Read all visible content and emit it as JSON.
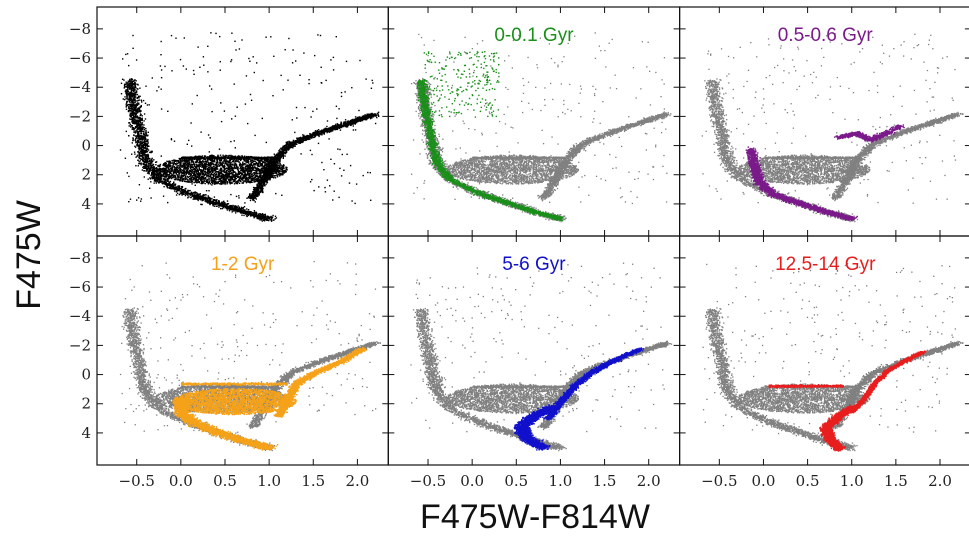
{
  "figure": {
    "xlabel": "F475W-F814W",
    "ylabel": "F475W",
    "background_color": "#808080"
  },
  "chart_data": {
    "type": "scatter",
    "xlabel": "F475W-F814W",
    "ylabel": "F475W",
    "xlim": [
      -0.95,
      2.35
    ],
    "ylim": [
      6.2,
      -9.5
    ],
    "y_inverted": true,
    "xticks": [
      -0.5,
      0.0,
      0.5,
      1.0,
      1.5,
      2.0
    ],
    "xtick_labels": [
      "−0.5",
      "0.0",
      "0.5",
      "1.0",
      "1.5",
      "2.0"
    ],
    "yticks": [
      -8,
      -6,
      -4,
      -2,
      0,
      2,
      4
    ],
    "ytick_labels": [
      "−8",
      "−6",
      "−4",
      "−2",
      "0",
      "2",
      "4"
    ],
    "grid": false,
    "panels": [
      {
        "label": "",
        "color": "#000000",
        "components": [
          {
            "kind": "ms",
            "points": [
              [
                1.0,
                5.0
              ],
              [
                0.7,
                4.5
              ],
              [
                0.4,
                3.9
              ],
              [
                0.1,
                3.3
              ],
              [
                -0.25,
                2.3
              ],
              [
                -0.4,
                1.2
              ],
              [
                -0.45,
                0.0
              ],
              [
                -0.5,
                -1.5
              ],
              [
                -0.55,
                -3.0
              ],
              [
                -0.58,
                -4.5
              ]
            ],
            "width": 0.55
          },
          {
            "kind": "blob",
            "cx": 0.45,
            "cy": 1.6,
            "rx": 0.75,
            "ry": 1.0
          },
          {
            "kind": "rgb",
            "points": [
              [
                0.8,
                3.6
              ],
              [
                0.95,
                2.2
              ],
              [
                1.05,
                1.0
              ],
              [
                1.25,
                -0.2
              ],
              [
                1.6,
                -1.0
              ],
              [
                1.9,
                -1.6
              ],
              [
                2.2,
                -2.2
              ]
            ],
            "width": 0.4
          },
          {
            "kind": "hb",
            "x0": 0.0,
            "x1": 1.05,
            "y": 0.8,
            "width": 0.1
          },
          {
            "kind": "halo",
            "x": [
              -0.7,
              2.2
            ],
            "y": [
              -7.8,
              4.0
            ]
          }
        ]
      },
      {
        "label": "0-0.1 Gyr",
        "color": "#1a8f1a",
        "components": [
          {
            "kind": "ms",
            "points": [
              [
                1.0,
                5.0
              ],
              [
                0.7,
                4.5
              ],
              [
                0.4,
                3.9
              ],
              [
                0.1,
                3.3
              ],
              [
                -0.25,
                2.3
              ],
              [
                -0.4,
                1.2
              ],
              [
                -0.45,
                0.0
              ],
              [
                -0.5,
                -1.5
              ],
              [
                -0.55,
                -3.0
              ],
              [
                -0.58,
                -4.5
              ]
            ],
            "width": 0.35
          },
          {
            "kind": "halo",
            "x": [
              -0.55,
              0.3
            ],
            "y": [
              -6.5,
              -2.0
            ]
          }
        ]
      },
      {
        "label": "0.5-0.6 Gyr",
        "color": "#7b1a8a",
        "components": [
          {
            "kind": "ms",
            "points": [
              [
                1.0,
                5.0
              ],
              [
                0.7,
                4.5
              ],
              [
                0.4,
                3.9
              ],
              [
                0.1,
                3.3
              ],
              [
                -0.05,
                2.5
              ],
              [
                -0.1,
                1.5
              ],
              [
                -0.15,
                0.2
              ]
            ],
            "width": 0.4
          },
          {
            "kind": "clump",
            "points": [
              [
                0.85,
                -0.6
              ],
              [
                1.05,
                -0.9
              ],
              [
                1.2,
                -0.4
              ],
              [
                1.35,
                -0.8
              ],
              [
                1.55,
                -1.4
              ]
            ],
            "width": 0.35
          }
        ]
      },
      {
        "label": "1-2 Gyr",
        "color": "#f5a21a",
        "components": [
          {
            "kind": "ms",
            "points": [
              [
                1.0,
                5.0
              ],
              [
                0.7,
                4.5
              ],
              [
                0.4,
                3.9
              ],
              [
                0.15,
                3.3
              ],
              [
                0.0,
                2.6
              ],
              [
                0.0,
                1.6
              ]
            ],
            "width": 0.55
          },
          {
            "kind": "blob",
            "cx": 0.6,
            "cy": 1.8,
            "rx": 0.7,
            "ry": 0.9
          },
          {
            "kind": "rgb",
            "points": [
              [
                1.1,
                2.8
              ],
              [
                1.2,
                1.8
              ],
              [
                1.3,
                0.6
              ],
              [
                1.5,
                -0.1
              ],
              [
                1.8,
                -0.9
              ],
              [
                2.05,
                -1.8
              ]
            ],
            "width": 0.35
          },
          {
            "kind": "hb",
            "x0": 0.0,
            "x1": 1.2,
            "y": 0.6,
            "width": 0.12
          }
        ]
      },
      {
        "label": "5-6 Gyr",
        "color": "#1111cc",
        "components": [
          {
            "kind": "ms",
            "points": [
              [
                0.8,
                5.0
              ],
              [
                0.6,
                4.3
              ],
              [
                0.55,
                3.5
              ],
              [
                0.7,
                2.8
              ],
              [
                0.9,
                2.2
              ]
            ],
            "width": 0.5
          },
          {
            "kind": "rgb",
            "points": [
              [
                0.85,
                3.0
              ],
              [
                1.0,
                1.8
              ],
              [
                1.15,
                0.8
              ],
              [
                1.35,
                -0.2
              ],
              [
                1.6,
                -1.0
              ],
              [
                1.9,
                -1.8
              ]
            ],
            "width": 0.3
          }
        ]
      },
      {
        "label": "12.5-14 Gyr",
        "color": "#e81e1e",
        "components": [
          {
            "kind": "ms",
            "points": [
              [
                0.85,
                5.1
              ],
              [
                0.75,
                4.4
              ],
              [
                0.7,
                3.6
              ],
              [
                0.85,
                2.8
              ],
              [
                1.0,
                2.2
              ]
            ],
            "width": 0.4
          },
          {
            "kind": "rgb",
            "points": [
              [
                1.0,
                2.5
              ],
              [
                1.15,
                1.5
              ],
              [
                1.25,
                0.6
              ],
              [
                1.4,
                -0.3
              ],
              [
                1.6,
                -1.0
              ],
              [
                1.8,
                -1.6
              ]
            ],
            "width": 0.22
          },
          {
            "kind": "hb",
            "x0": 0.05,
            "x1": 0.9,
            "y": 0.75,
            "width": 0.12
          }
        ]
      }
    ]
  }
}
